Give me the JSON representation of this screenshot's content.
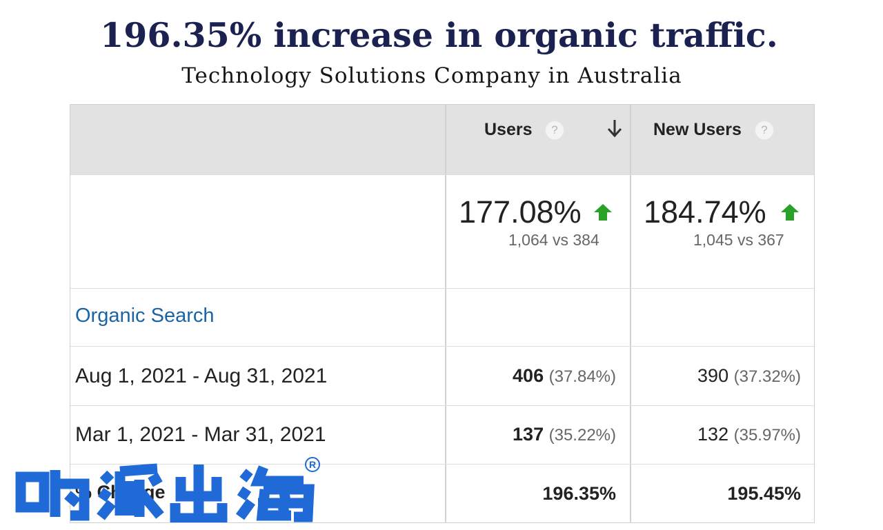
{
  "headline": "196.35% increase in organic traffic.",
  "subheadline": "Technology Solutions Company in Australia",
  "colors": {
    "headline": "#1b2150",
    "link": "#1a64a6",
    "up_arrow": "#2aa22a",
    "watermark": "#1f6ad6"
  },
  "columns": [
    {
      "title": "Users",
      "help": "?",
      "sorted": true,
      "sort_icon": "arrow-down-icon"
    },
    {
      "title": "New Users",
      "help": "?"
    }
  ],
  "summary": [
    {
      "percent": "177.08%",
      "comparison": "1,064 vs 384",
      "trend_icon": "up-arrow-icon"
    },
    {
      "percent": "184.74%",
      "comparison": "1,045 vs 367",
      "trend_icon": "up-arrow-icon"
    }
  ],
  "segment": "Organic Search",
  "rows": [
    {
      "label": "Aug 1, 2021 - Aug 31, 2021",
      "users": {
        "value": "406",
        "share": "(37.84%)"
      },
      "new_users": {
        "value": "390",
        "share": "(37.32%)"
      }
    },
    {
      "label": "Mar 1, 2021 - Mar 31, 2021",
      "users": {
        "value": "137",
        "share": "(35.22%)"
      },
      "new_users": {
        "value": "132",
        "share": "(35.97%)"
      }
    }
  ],
  "change_row": {
    "label": "% Change",
    "users": "196.35%",
    "new_users": "195.45%"
  },
  "watermark": {
    "text": "哟派出海",
    "mark": "®"
  }
}
